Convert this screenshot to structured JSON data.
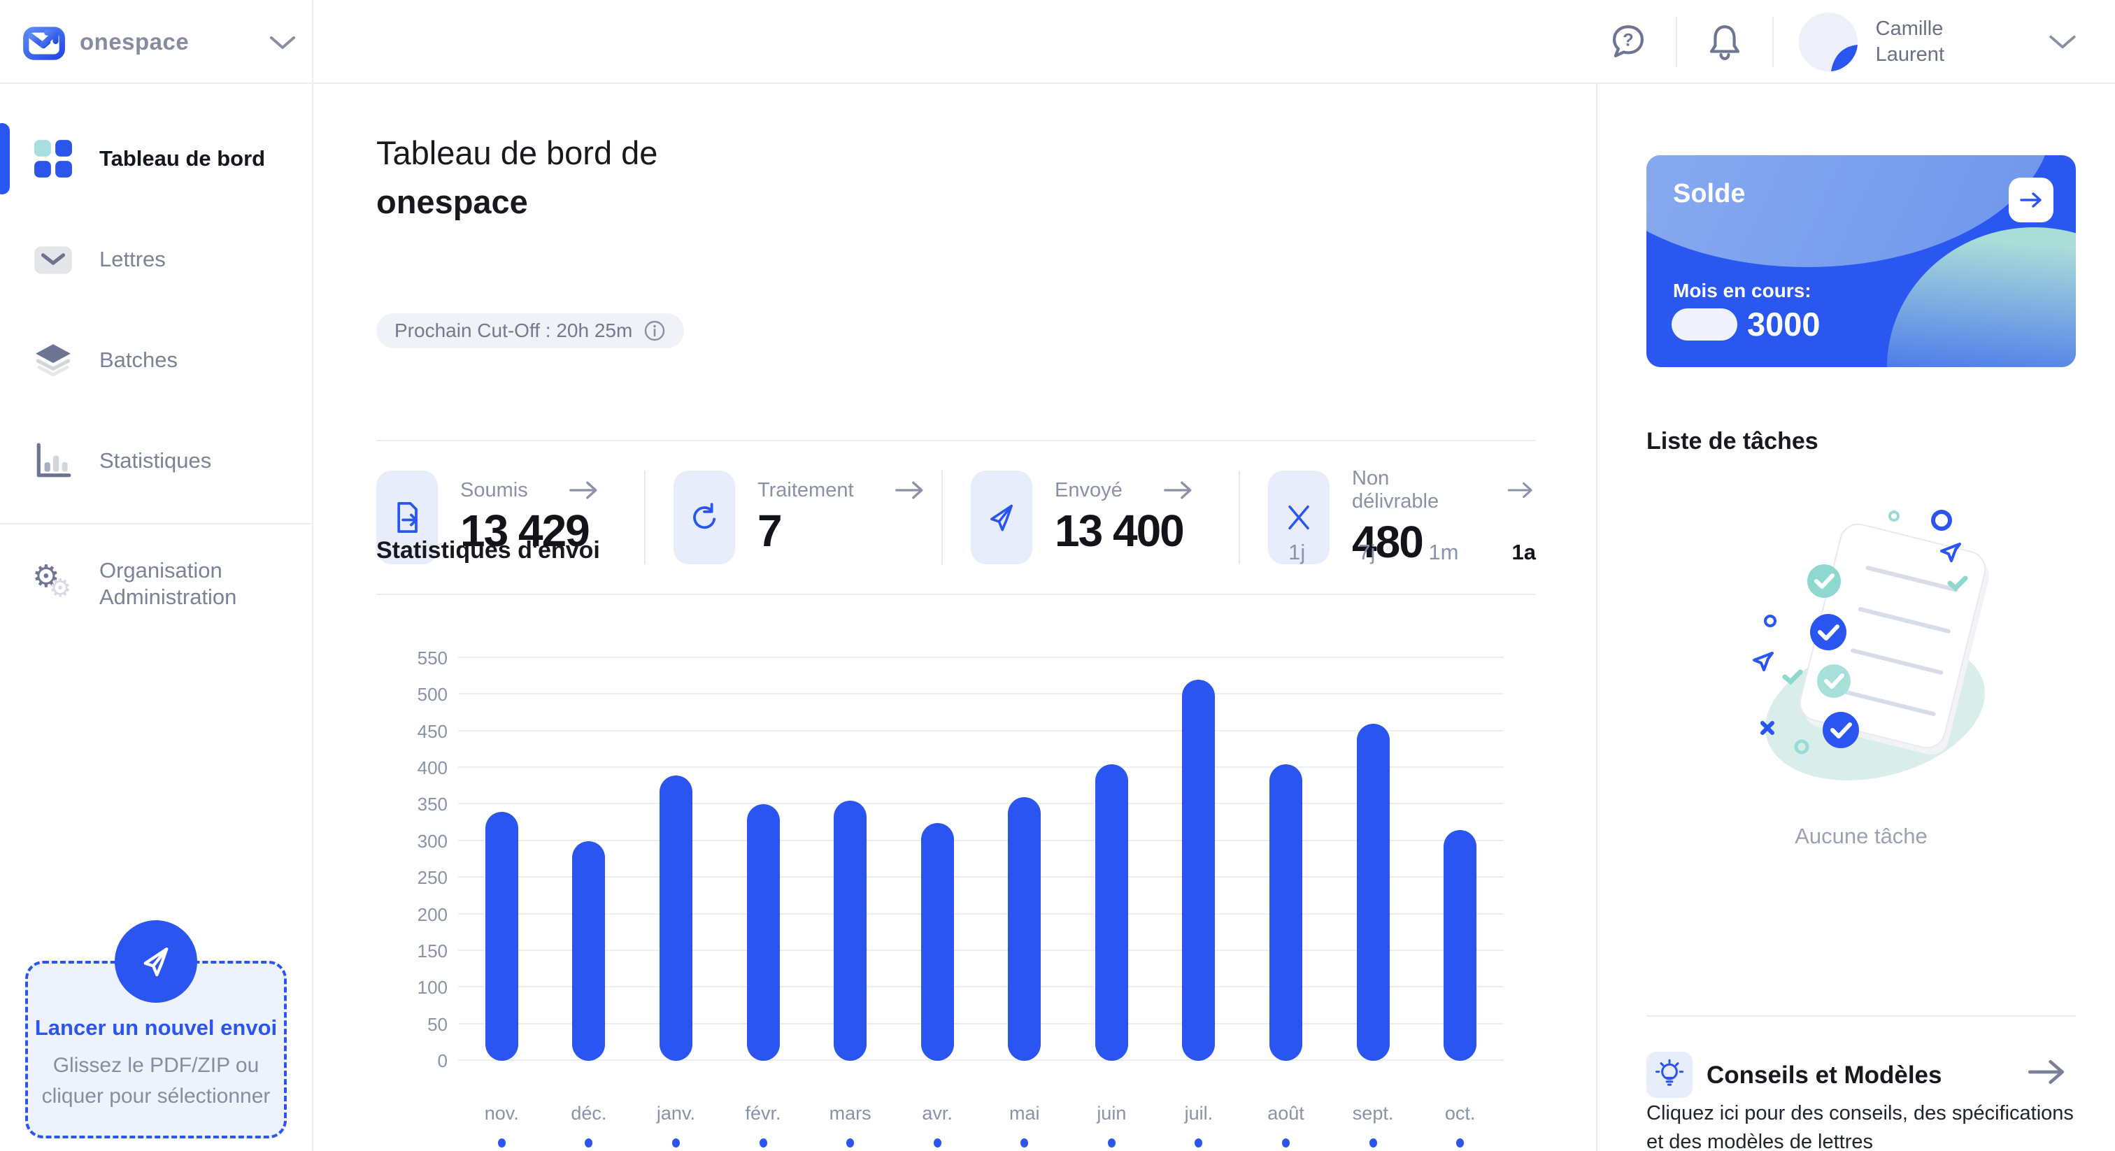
{
  "colors": {
    "accent": "#2B55F0",
    "card_blue": "#2A57EF",
    "teal": "#A9DEE0",
    "muted_text": "#8A92A8"
  },
  "topbar": {
    "brand": "onespace",
    "icons": [
      "help-icon",
      "bell-icon",
      "chevron-down-icon"
    ],
    "user": {
      "first_name": "Camille",
      "last_name": "Laurent"
    }
  },
  "sidebar": {
    "items": [
      {
        "label": "Tableau de bord",
        "icon": "dashboard-grid-icon",
        "active": true
      },
      {
        "label": "Lettres",
        "icon": "envelope-icon",
        "active": false
      },
      {
        "label": "Batches",
        "icon": "layers-icon",
        "active": false
      },
      {
        "label": "Statistiques",
        "icon": "bar-chart-icon",
        "active": false
      },
      {
        "label": "Organisation Administration",
        "icon": "gears-icon",
        "active": false
      }
    ],
    "upload": {
      "title": "Lancer un nouvel envoi",
      "subtitle": "Glissez le PDF/ZIP ou cliquer pour sélectionner",
      "icon": "paper-plane-icon"
    }
  },
  "page": {
    "title_regular": "Tableau de bord de",
    "title_bold": "onespace",
    "cutoff_label": "Prochain Cut-Off : 20h 25m",
    "cutoff_icon": "info-icon"
  },
  "stats": {
    "items": [
      {
        "label": "Soumis",
        "value": "13 429",
        "icon": "document-submit-icon"
      },
      {
        "label": "Traitement",
        "value": "7",
        "icon": "sync-icon"
      },
      {
        "label": "Envoyé",
        "value": "13 400",
        "icon": "send-icon"
      },
      {
        "label": "Non délivrable",
        "value": "480",
        "icon": "cross-icon"
      }
    ]
  },
  "chart_section": {
    "title": "Statistiques d'envoi",
    "ranges": [
      {
        "label": "1j",
        "active": false
      },
      {
        "label": "7j",
        "active": false
      },
      {
        "label": "1m",
        "active": false
      },
      {
        "label": "1a",
        "active": true
      }
    ]
  },
  "chart_data": {
    "type": "bar",
    "title": "Statistiques d'envoi",
    "categories": [
      "nov.",
      "déc.",
      "janv.",
      "févr.",
      "mars",
      "avr.",
      "mai",
      "juin",
      "juil.",
      "août",
      "sept.",
      "oct."
    ],
    "values": [
      340,
      300,
      390,
      350,
      355,
      325,
      360,
      405,
      520,
      405,
      460,
      315
    ],
    "xlabel": "",
    "ylabel": "",
    "ylim": [
      0,
      550
    ],
    "ytick_step": 50,
    "grid": true,
    "legend": false,
    "bar_color": "#2B55F0"
  },
  "balance_card": {
    "title": "Solde",
    "period_label": "Mois en cours:",
    "value": "3000",
    "icon": "arrow-right-icon"
  },
  "tasks": {
    "title": "Liste de tâches",
    "empty_text": "Aucune tâche"
  },
  "tips": {
    "title": "Conseils et Modèles",
    "description": "Cliquez ici pour des conseils, des spécifications et des modèles de lettres",
    "icon": "lightbulb-icon"
  }
}
